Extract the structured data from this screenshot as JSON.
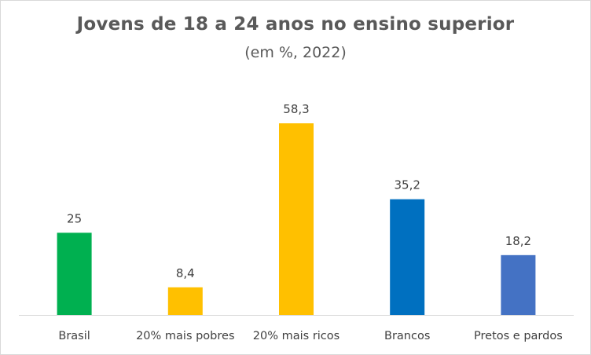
{
  "chart_data": {
    "type": "bar",
    "title": "Jovens de 18 a 24 anos no ensino superior",
    "subtitle": "(em %, 2022)",
    "categories": [
      "Brasil",
      "20% mais pobres",
      "20% mais ricos",
      "Brancos",
      "Pretos e pardos"
    ],
    "values": [
      25,
      8.4,
      58.3,
      35.2,
      18.2
    ],
    "value_labels": [
      "25",
      "8,4",
      "58,3",
      "35,2",
      "18,2"
    ],
    "colors": [
      "#00b050",
      "#ffc000",
      "#ffc000",
      "#0070c0",
      "#4472c4"
    ],
    "xlabel": "",
    "ylabel": "",
    "ylim": [
      0,
      60
    ],
    "grid": false,
    "legend": "none"
  }
}
